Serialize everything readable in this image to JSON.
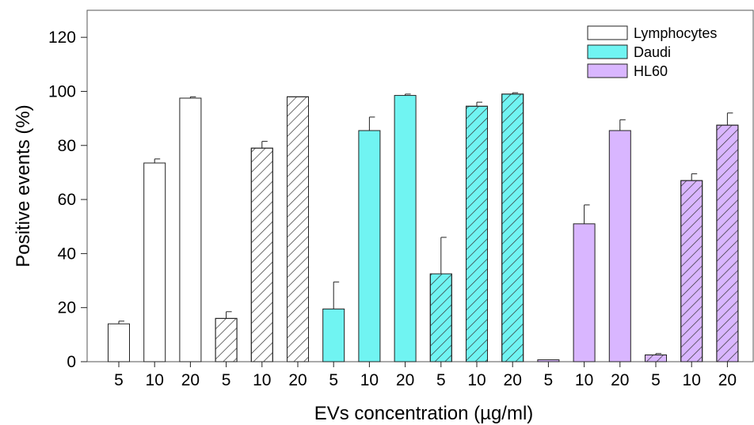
{
  "chart_data": {
    "type": "bar",
    "xlabel": "EVs concentration (µg/ml)",
    "ylabel": "Positive events (%)",
    "ylim": [
      0,
      130
    ],
    "yticks": [
      0,
      20,
      40,
      60,
      80,
      100,
      120
    ],
    "legend_position": "top-right",
    "legend": [
      {
        "label": "Lymphocytes",
        "color": "#ffffff"
      },
      {
        "label": "Daudi",
        "color": "#70f4f2"
      },
      {
        "label": "HL60",
        "color": "#d9b6ff"
      }
    ],
    "categories": [
      "5",
      "10",
      "20",
      "5",
      "10",
      "20",
      "5",
      "10",
      "20",
      "5",
      "10",
      "20",
      "5",
      "10",
      "20",
      "5",
      "10",
      "20"
    ],
    "bars": [
      {
        "x": "5",
        "value": 14,
        "error": 1,
        "color": "#ffffff",
        "hatched": false
      },
      {
        "x": "10",
        "value": 73.5,
        "error": 1.5,
        "color": "#ffffff",
        "hatched": false
      },
      {
        "x": "20",
        "value": 97.5,
        "error": 0.5,
        "color": "#ffffff",
        "hatched": false
      },
      {
        "x": "5",
        "value": 16,
        "error": 2.5,
        "color": "#ffffff",
        "hatched": true
      },
      {
        "x": "10",
        "value": 79,
        "error": 2.5,
        "color": "#ffffff",
        "hatched": true
      },
      {
        "x": "20",
        "value": 98,
        "error": 0,
        "color": "#ffffff",
        "hatched": true
      },
      {
        "x": "5",
        "value": 19.5,
        "error": 10,
        "color": "#70f4f2",
        "hatched": false
      },
      {
        "x": "10",
        "value": 85.5,
        "error": 5,
        "color": "#70f4f2",
        "hatched": false
      },
      {
        "x": "20",
        "value": 98.5,
        "error": 0.5,
        "color": "#70f4f2",
        "hatched": false
      },
      {
        "x": "5",
        "value": 32.5,
        "error": 13.5,
        "color": "#70f4f2",
        "hatched": true
      },
      {
        "x": "10",
        "value": 94.5,
        "error": 1.5,
        "color": "#70f4f2",
        "hatched": true
      },
      {
        "x": "20",
        "value": 99,
        "error": 0.5,
        "color": "#70f4f2",
        "hatched": true
      },
      {
        "x": "5",
        "value": 0.7,
        "error": 0,
        "color": "#d9b6ff",
        "hatched": false
      },
      {
        "x": "10",
        "value": 51,
        "error": 7,
        "color": "#d9b6ff",
        "hatched": false
      },
      {
        "x": "20",
        "value": 85.5,
        "error": 4,
        "color": "#d9b6ff",
        "hatched": false
      },
      {
        "x": "5",
        "value": 2.5,
        "error": 0.5,
        "color": "#d9b6ff",
        "hatched": true
      },
      {
        "x": "10",
        "value": 67,
        "error": 2.5,
        "color": "#d9b6ff",
        "hatched": true
      },
      {
        "x": "20",
        "value": 87.5,
        "error": 4.5,
        "color": "#d9b6ff",
        "hatched": true
      }
    ]
  }
}
